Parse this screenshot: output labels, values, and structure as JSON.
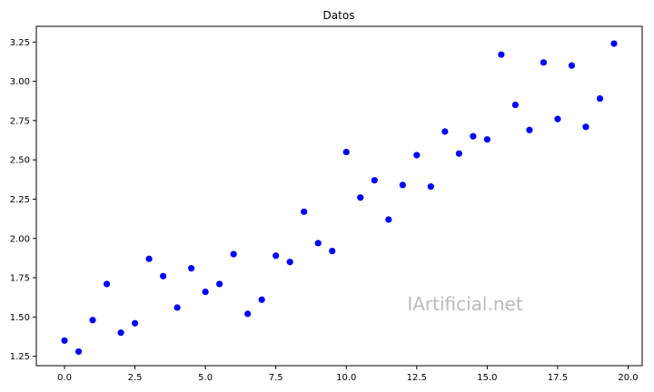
{
  "chart_data": {
    "type": "scatter",
    "title": "Datos",
    "xlabel": "",
    "ylabel": "",
    "xlim": [
      -1.0,
      20.5
    ],
    "ylim": [
      1.19,
      3.35
    ],
    "grid": false,
    "xticks": [
      0.0,
      2.5,
      5.0,
      7.5,
      10.0,
      12.5,
      15.0,
      17.5,
      20.0
    ],
    "xtick_labels": [
      "0.0",
      "2.5",
      "5.0",
      "7.5",
      "10.0",
      "12.5",
      "15.0",
      "17.5",
      "20.0"
    ],
    "yticks": [
      1.25,
      1.5,
      1.75,
      2.0,
      2.25,
      2.5,
      2.75,
      3.0,
      3.25
    ],
    "ytick_labels": [
      "1.25",
      "1.50",
      "1.75",
      "2.00",
      "2.25",
      "2.50",
      "2.75",
      "3.00",
      "3.25"
    ],
    "marker_color": "#0000ff",
    "points": [
      {
        "x": 0.0,
        "y": 1.35
      },
      {
        "x": 0.5,
        "y": 1.28
      },
      {
        "x": 1.0,
        "y": 1.48
      },
      {
        "x": 1.5,
        "y": 1.71
      },
      {
        "x": 2.0,
        "y": 1.4
      },
      {
        "x": 2.5,
        "y": 1.46
      },
      {
        "x": 3.0,
        "y": 1.87
      },
      {
        "x": 3.5,
        "y": 1.76
      },
      {
        "x": 4.0,
        "y": 1.56
      },
      {
        "x": 4.5,
        "y": 1.81
      },
      {
        "x": 5.0,
        "y": 1.66
      },
      {
        "x": 5.5,
        "y": 1.71
      },
      {
        "x": 6.0,
        "y": 1.9
      },
      {
        "x": 6.5,
        "y": 1.52
      },
      {
        "x": 7.0,
        "y": 1.61
      },
      {
        "x": 7.5,
        "y": 1.89
      },
      {
        "x": 8.0,
        "y": 1.85
      },
      {
        "x": 8.5,
        "y": 2.17
      },
      {
        "x": 9.0,
        "y": 1.97
      },
      {
        "x": 9.5,
        "y": 1.92
      },
      {
        "x": 10.0,
        "y": 2.55
      },
      {
        "x": 10.5,
        "y": 2.26
      },
      {
        "x": 11.0,
        "y": 2.37
      },
      {
        "x": 11.5,
        "y": 2.12
      },
      {
        "x": 12.0,
        "y": 2.34
      },
      {
        "x": 12.5,
        "y": 2.53
      },
      {
        "x": 13.0,
        "y": 2.33
      },
      {
        "x": 13.5,
        "y": 2.68
      },
      {
        "x": 14.0,
        "y": 2.54
      },
      {
        "x": 14.5,
        "y": 2.65
      },
      {
        "x": 15.0,
        "y": 2.63
      },
      {
        "x": 15.5,
        "y": 3.17
      },
      {
        "x": 16.0,
        "y": 2.85
      },
      {
        "x": 16.5,
        "y": 2.69
      },
      {
        "x": 17.0,
        "y": 3.12
      },
      {
        "x": 17.5,
        "y": 2.76
      },
      {
        "x": 18.0,
        "y": 3.1
      },
      {
        "x": 18.5,
        "y": 2.71
      },
      {
        "x": 19.0,
        "y": 2.89
      },
      {
        "x": 19.5,
        "y": 3.24
      }
    ]
  },
  "watermark": "IArtificial.net"
}
